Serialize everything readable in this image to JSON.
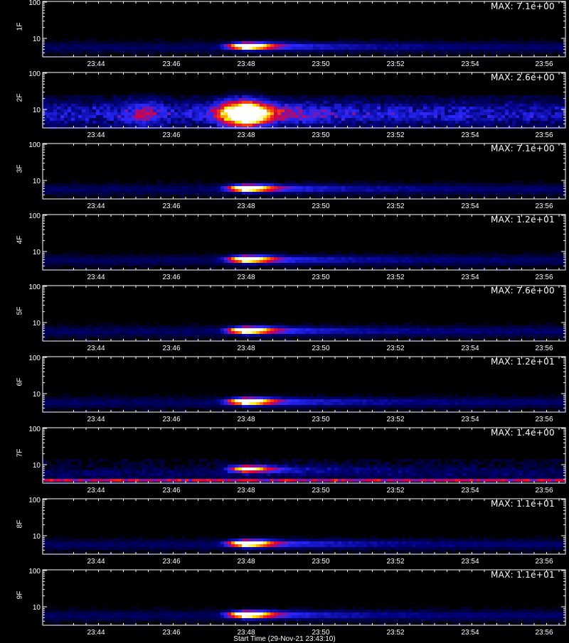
{
  "chart_data": [
    {
      "type": "heatmap",
      "ylabel": "1F",
      "max_label": "MAX: 7.1e+00",
      "profile": "burst",
      "intensity": 1.0
    },
    {
      "type": "heatmap",
      "ylabel": "2F",
      "max_label": "MAX: 2.6e+00",
      "profile": "broad",
      "intensity": 1.0
    },
    {
      "type": "heatmap",
      "ylabel": "3F",
      "max_label": "MAX: 7.1e+00",
      "profile": "burst",
      "intensity": 1.0
    },
    {
      "type": "heatmap",
      "ylabel": "4F",
      "max_label": "MAX: 1.2e+01",
      "profile": "burst",
      "intensity": 0.95
    },
    {
      "type": "heatmap",
      "ylabel": "5F",
      "max_label": "MAX: 7.6e+00",
      "profile": "burst",
      "intensity": 1.0
    },
    {
      "type": "heatmap",
      "ylabel": "6F",
      "max_label": "MAX: 1.2e+01",
      "profile": "burst",
      "intensity": 1.0
    },
    {
      "type": "heatmap",
      "ylabel": "7F",
      "max_label": "MAX: 1.4e+00",
      "profile": "noisy",
      "intensity": 0.9
    },
    {
      "type": "heatmap",
      "ylabel": "8F",
      "max_label": "MAX: 1.1e+01",
      "profile": "burst",
      "intensity": 1.0
    },
    {
      "type": "heatmap",
      "ylabel": "9F",
      "max_label": "MAX: 1.1e+01",
      "profile": "burst",
      "intensity": 1.0
    }
  ],
  "x_ticks": [
    "23:44",
    "23:46",
    "23:48",
    "23:50",
    "23:52",
    "23:54",
    "23:56"
  ],
  "y_ticks": [
    "10",
    "100"
  ],
  "xlabel": "Start Time (29-Nov-21 23:43:10)",
  "colors": {
    "background": "#000000",
    "axis": "#ffffff"
  }
}
